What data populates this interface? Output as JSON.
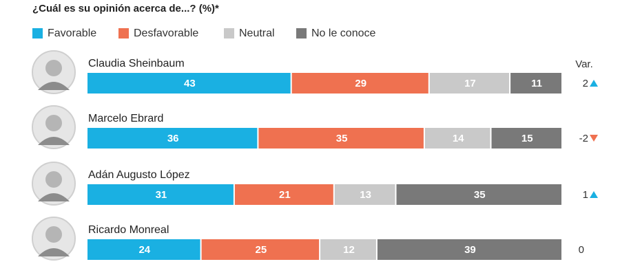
{
  "chart_data": {
    "type": "stacked-bar-horizontal",
    "title": "¿Cuál es su opinión acerca de...? (%)*",
    "categories": [
      "Claudia Sheinbaum",
      "Marcelo Ebrard",
      "Adán Augusto López",
      "Ricardo Monreal"
    ],
    "series": [
      {
        "name": "Favorable",
        "color": "#1ab0e2",
        "values": [
          43,
          36,
          31,
          24
        ]
      },
      {
        "name": "Desfavorable",
        "color": "#ef7150",
        "values": [
          29,
          35,
          21,
          25
        ]
      },
      {
        "name": "Neutral",
        "color": "#c9c9c9",
        "values": [
          17,
          14,
          13,
          12
        ]
      },
      {
        "name": "No le conoce",
        "color": "#797979",
        "values": [
          11,
          15,
          35,
          39
        ]
      }
    ],
    "var": {
      "label": "Var.",
      "values": [
        2,
        -2,
        1,
        0
      ]
    },
    "legend": "top"
  }
}
